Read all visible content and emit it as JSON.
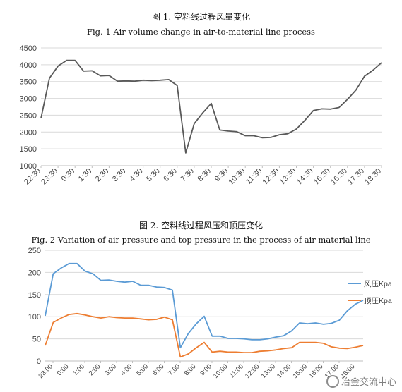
{
  "watermark": "冶金交流中心",
  "chart_data": [
    {
      "type": "line",
      "title": "图 1. 空料线过程风量变化",
      "subtitle": "Fig. 1    Air volume change in air-to-material line process",
      "xlabel": "",
      "ylabel": "",
      "ylim": [
        1000,
        4500
      ],
      "yticks": [
        "1000",
        "1500",
        "2000",
        "2500",
        "3000",
        "3500",
        "4000",
        "4500"
      ],
      "xtick_labels": [
        "22:30",
        "23:30",
        "0:30",
        "1:30",
        "2:30",
        "3:30",
        "4:30",
        "5:30",
        "6:30",
        "7:30",
        "8:30",
        "9:30",
        "10:30",
        "11:30",
        "12:30",
        "13:30",
        "14:30",
        "15:30",
        "16:30",
        "17:30",
        "18:30"
      ],
      "grid": "horizontal",
      "color": "#595959",
      "series": [
        {
          "values": [
            2410,
            3600,
            3960,
            4130,
            4130,
            3810,
            3820,
            3670,
            3680,
            3510,
            3520,
            3510,
            3540,
            3530,
            3540,
            3560,
            3380,
            1380,
            2250,
            2570,
            2850,
            2060,
            2030,
            2010,
            1890,
            1890,
            1830,
            1840,
            1920,
            1950,
            2090,
            2350,
            2640,
            2690,
            2680,
            2730,
            2970,
            3250,
            3660,
            3840,
            4060
          ]
        }
      ]
    },
    {
      "type": "line",
      "title": "图 2. 空料线过程风压和顶压变化",
      "subtitle": "Fig. 2    Variation of air pressure and top pressure in the process of    air material line",
      "xlabel": "",
      "ylabel": "",
      "ylim": [
        0,
        250
      ],
      "yticks": [
        "0",
        "50",
        "100",
        "150",
        "200",
        "250"
      ],
      "xtick_labels": [
        "23:00",
        "0:00",
        "1:00",
        "2:00",
        "3:00",
        "4:00",
        "5:00",
        "6:00",
        "7:00",
        "8:00",
        "9:00",
        "10:00",
        "11:00",
        "12:00",
        "13:00",
        "14:00",
        "15:00",
        "16:00",
        "17:00",
        "18:00"
      ],
      "grid": "horizontal",
      "legend": "right",
      "series": [
        {
          "name": "风压Kpa",
          "color": "#5b9bd5",
          "values": [
            102,
            197,
            210,
            220,
            220,
            203,
            197,
            182,
            183,
            180,
            178,
            180,
            171,
            171,
            167,
            166,
            160,
            30,
            62,
            84,
            101,
            56,
            56,
            51,
            51,
            50,
            48,
            48,
            50,
            54,
            57,
            68,
            86,
            84,
            86,
            83,
            85,
            92,
            113,
            128,
            137
          ]
        },
        {
          "name": "顶压Kpa",
          "color": "#ed7d31",
          "values": [
            35,
            87,
            97,
            105,
            107,
            104,
            100,
            97,
            100,
            98,
            97,
            97,
            95,
            93,
            94,
            99,
            93,
            9,
            16,
            30,
            42,
            20,
            22,
            20,
            20,
            19,
            19,
            22,
            23,
            25,
            28,
            30,
            42,
            42,
            42,
            40,
            32,
            29,
            28,
            31,
            35
          ]
        }
      ]
    }
  ]
}
